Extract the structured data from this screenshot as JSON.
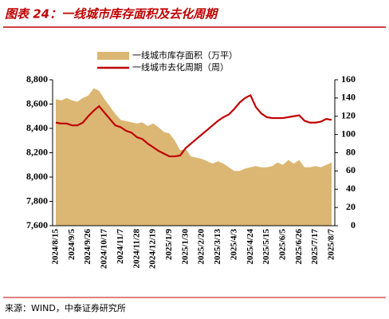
{
  "header": {
    "title": "图表 24：一线城市库存面积及去化周期"
  },
  "chart_data": {
    "type": "combo",
    "categories": [
      "2024/8/15",
      null,
      null,
      "2024/9/5",
      null,
      null,
      "2024/9/26",
      null,
      null,
      "2024/10/17",
      null,
      null,
      "2024/11/7",
      null,
      null,
      "2024/11/28",
      null,
      null,
      "2024/12/19",
      null,
      null,
      "2025/1/9",
      null,
      null,
      "2025/1/30",
      null,
      null,
      "2025/2/20",
      null,
      null,
      "2025/3/13",
      null,
      null,
      "2025/4/3",
      null,
      null,
      "2025/4/24",
      null,
      null,
      "2025/5/15",
      null,
      null,
      "2025/6/5",
      null,
      null,
      "2025/6/26",
      null,
      null,
      "2025/7/17",
      null,
      null,
      "2025/8/7"
    ],
    "series": [
      {
        "name": "一线城市库存面积（万平）",
        "type": "area",
        "color": "#dbb773",
        "values": [
          8640,
          8630,
          8650,
          8630,
          8620,
          8650,
          8670,
          8730,
          8710,
          8640,
          8580,
          8520,
          8470,
          8460,
          8450,
          8440,
          8450,
          8420,
          8440,
          8410,
          8370,
          8360,
          8300,
          8220,
          8230,
          8170,
          8160,
          8150,
          8130,
          8110,
          8130,
          8110,
          8080,
          8050,
          8050,
          8070,
          8080,
          8090,
          8080,
          8080,
          8090,
          8120,
          8100,
          8140,
          8110,
          8140,
          8080,
          8080,
          8090,
          8080,
          8100,
          8120
        ]
      },
      {
        "name": "一线城市去化周期（周）",
        "type": "line",
        "color": "#c00000",
        "axis": "y2",
        "values": [
          113,
          112,
          112,
          110,
          110,
          113,
          120,
          126,
          131,
          124,
          117,
          110,
          108,
          104,
          102,
          97,
          95,
          90,
          86,
          82,
          79,
          76,
          76,
          77,
          85,
          90,
          95,
          100,
          105,
          110,
          115,
          119,
          122,
          128,
          135,
          140,
          143,
          130,
          123,
          119,
          118,
          118,
          118,
          119,
          120,
          121,
          115,
          113,
          113,
          114,
          117,
          116
        ]
      }
    ],
    "ylim": [
      7600,
      8800
    ],
    "yticks": [
      {
        "value": 7600,
        "label": "7,600"
      },
      {
        "value": 7800,
        "label": "7,800"
      },
      {
        "value": 8000,
        "label": "8,000"
      },
      {
        "value": 8200,
        "label": "8,200"
      },
      {
        "value": 8400,
        "label": "8,400"
      },
      {
        "value": 8600,
        "label": "8,600"
      },
      {
        "value": 8800,
        "label": "8,800"
      }
    ],
    "y2lim": [
      0,
      160
    ],
    "y2ticks": [
      0,
      20,
      40,
      60,
      80,
      100,
      120,
      140,
      160
    ]
  },
  "footer": {
    "source": "来源：WIND，中泰证券研究所"
  }
}
